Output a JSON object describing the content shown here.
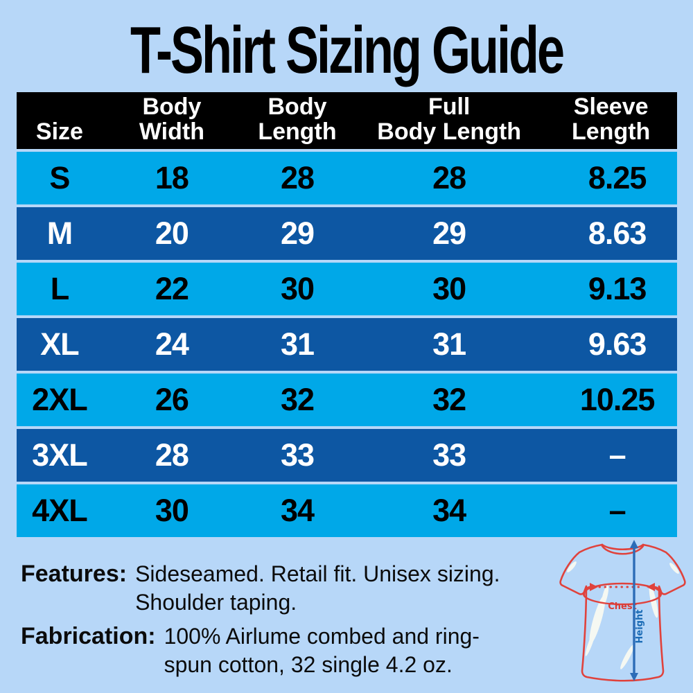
{
  "title": "T-Shirt Sizing Guide",
  "chart_data": {
    "type": "table",
    "title": "T-Shirt Sizing Guide",
    "columns": [
      "Size",
      "Body Width",
      "Body Length",
      "Full Body Length",
      "Sleeve Length"
    ],
    "rows": [
      [
        "S",
        "18",
        "28",
        "28",
        "8.25"
      ],
      [
        "M",
        "20",
        "29",
        "29",
        "8.63"
      ],
      [
        "L",
        "22",
        "30",
        "30",
        "9.13"
      ],
      [
        "XL",
        "24",
        "31",
        "31",
        "9.63"
      ],
      [
        "2XL",
        "26",
        "32",
        "32",
        "10.25"
      ],
      [
        "3XL",
        "28",
        "33",
        "33",
        "–"
      ],
      [
        "4XL",
        "30",
        "34",
        "34",
        "–"
      ]
    ],
    "row_style_alternation": [
      "light-cyan-black-text",
      "dark-blue-white-text"
    ],
    "legend_position": "none",
    "grid": false
  },
  "table": {
    "header_lines": [
      [
        "Size"
      ],
      [
        "Body",
        "Width"
      ],
      [
        "Body",
        "Length"
      ],
      [
        "Full",
        "Body Length"
      ],
      [
        "Sleeve",
        "Length"
      ]
    ]
  },
  "notes": {
    "features_label": "Features:",
    "features_lines": [
      "Sideseamed. Retail fit. Unisex sizing.",
      "Shoulder taping."
    ],
    "fabrication_label": "Fabrication:",
    "fabrication_lines": [
      "100% Airlume combed and ring-",
      "spun cotton, 32 single 4.2 oz."
    ]
  },
  "diagram": {
    "chest_label": "Chest",
    "height_label": "Height"
  },
  "colors": {
    "background": "#b7d7f8",
    "header_bg": "#000000",
    "row_light": "#00a8e8",
    "row_dark": "#0d57a3",
    "row_light_text": "#000000",
    "row_dark_text": "#ffffff",
    "title_text": "#000000",
    "shirt_outline_red": "#e0423c",
    "measure_blue": "#2c6cb7"
  }
}
